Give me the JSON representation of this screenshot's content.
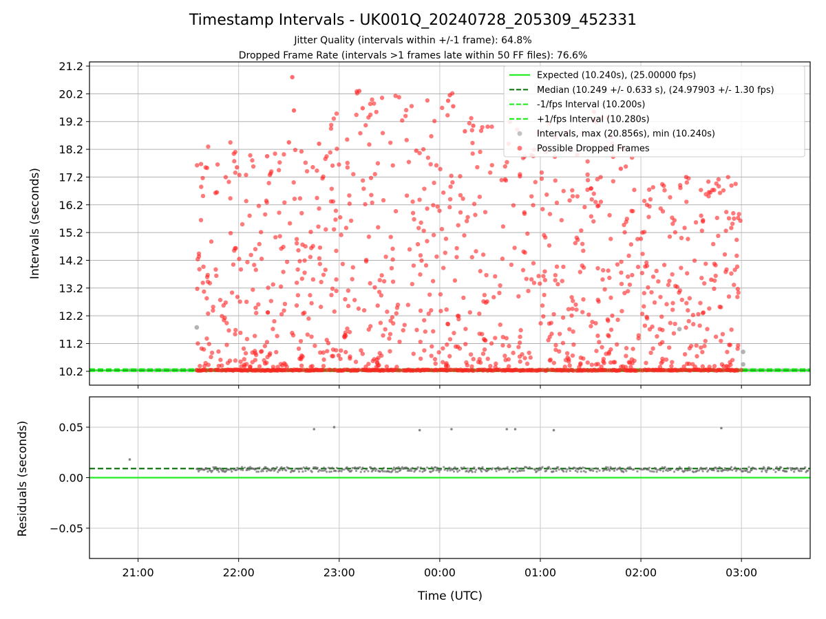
{
  "chart_data": [
    {
      "type": "scatter",
      "panel": "top",
      "title": "Timestamp Intervals - UK001Q_20240728_205309_452331",
      "subtitle_1": "Jitter Quality (intervals within +/-1 frame): 64.8%",
      "subtitle_2": "Dropped Frame Rate (intervals >1 frames late within 50 FF files): 76.6%",
      "ylabel": "Intervals (seconds)",
      "x_axis": "time_utc",
      "xlim": [
        "20:31",
        "03:41"
      ],
      "ylim": [
        9.7,
        21.35
      ],
      "yticks": [
        "10.2",
        "11.2",
        "12.2",
        "13.2",
        "14.2",
        "15.2",
        "16.2",
        "17.2",
        "18.2",
        "19.2",
        "20.2",
        "21.2"
      ],
      "grid": true,
      "legend_position": "upper-right",
      "reference_lines": [
        {
          "name": "Expected (10.240s), (25.00000 fps)",
          "y": 10.24,
          "style": "solid",
          "color": "#22ee22"
        },
        {
          "name": "Median (10.249 +/- 0.633 s), (24.97903 +/- 1.30 fps)",
          "y": 10.249,
          "style": "dashed",
          "color": "#117711"
        },
        {
          "name": "-1/fps Interval (10.200s)",
          "y": 10.2,
          "style": "dashed",
          "color": "#22ee22"
        },
        {
          "name": "+1/fps Interval (10.280s)",
          "y": 10.28,
          "style": "dashed",
          "color": "#22ee22"
        }
      ],
      "series": [
        {
          "name": "Intervals, max (20.856s), min (10.240s)",
          "color": "#999999",
          "start": "20:55",
          "end": "03:40",
          "y_base": 10.24,
          "outliers": [
            {
              "x": "21:35",
              "y": 11.78
            },
            {
              "x": "02:23",
              "y": 11.72
            },
            {
              "x": "03:01",
              "y": 10.45
            },
            {
              "x": "03:01",
              "y": 10.9
            }
          ]
        },
        {
          "name": "Possible Dropped Frames",
          "color": "#ff2222",
          "start": "21:35",
          "end": "03:00",
          "y_base": 10.24,
          "dense_regions": [
            {
              "start": "21:35",
              "end": "22:55",
              "peak": 18.5
            },
            {
              "start": "22:55",
              "end": "00:15",
              "peak": 20.3
            },
            {
              "start": "00:15",
              "end": "01:55",
              "peak": 19.5
            },
            {
              "start": "01:55",
              "end": "03:00",
              "peak": 17.2
            }
          ],
          "highlights": [
            {
              "x": "22:32",
              "y": 20.8
            },
            {
              "x": "23:12",
              "y": 20.3
            },
            {
              "x": "00:06",
              "y": 20.15
            },
            {
              "x": "00:05",
              "y": 19.95
            },
            {
              "x": "00:08",
              "y": 19.75
            },
            {
              "x": "23:14",
              "y": 19.68
            },
            {
              "x": "22:33",
              "y": 19.6
            },
            {
              "x": "00:20",
              "y": 19.05
            },
            {
              "x": "00:15",
              "y": 18.85
            },
            {
              "x": "22:17",
              "y": 17.95
            },
            {
              "x": "22:30",
              "y": 18.45
            },
            {
              "x": "22:48",
              "y": 18.4
            },
            {
              "x": "23:46",
              "y": 18.15
            },
            {
              "x": "00:41",
              "y": 18.4
            },
            {
              "x": "01:32",
              "y": 19.55
            },
            {
              "x": "01:22",
              "y": 18.0
            },
            {
              "x": "01:48",
              "y": 17.5
            },
            {
              "x": "02:27",
              "y": 17.2
            },
            {
              "x": "21:59",
              "y": 17.55
            },
            {
              "x": "21:47",
              "y": 16.65
            },
            {
              "x": "02:37",
              "y": 15.6
            },
            {
              "x": "02:42",
              "y": 13.5
            }
          ]
        }
      ]
    },
    {
      "type": "scatter",
      "panel": "bottom",
      "ylabel": "Residuals (seconds)",
      "xlabel": "Time (UTC)",
      "xlim": [
        "20:31",
        "03:41"
      ],
      "ylim": [
        -0.08,
        0.08
      ],
      "yticks": [
        "0.05",
        "0.00",
        "−0.05"
      ],
      "ytick_values": [
        0.05,
        0.0,
        -0.05
      ],
      "xticks": [
        "21:00",
        "22:00",
        "23:00",
        "00:00",
        "01:00",
        "02:00",
        "03:00"
      ],
      "grid": true,
      "reference_lines": [
        {
          "name": "Expected",
          "y": 0.0,
          "style": "solid",
          "color": "#22ee22"
        },
        {
          "name": "Median",
          "y": 0.009,
          "style": "dashed",
          "color": "#117711"
        }
      ],
      "series": [
        {
          "name": "Residuals",
          "color": "#666666",
          "start": "21:35",
          "end": "03:40",
          "y_base": 0.008,
          "spread": 0.0025,
          "outliers": [
            {
              "x": "20:55",
              "y": 0.018
            },
            {
              "x": "22:45",
              "y": 0.048
            },
            {
              "x": "22:57",
              "y": 0.05
            },
            {
              "x": "23:48",
              "y": 0.047
            },
            {
              "x": "00:07",
              "y": 0.048
            },
            {
              "x": "00:40",
              "y": 0.048
            },
            {
              "x": "00:45",
              "y": 0.048
            },
            {
              "x": "01:08",
              "y": 0.047
            },
            {
              "x": "02:48",
              "y": 0.049
            }
          ]
        }
      ]
    }
  ]
}
